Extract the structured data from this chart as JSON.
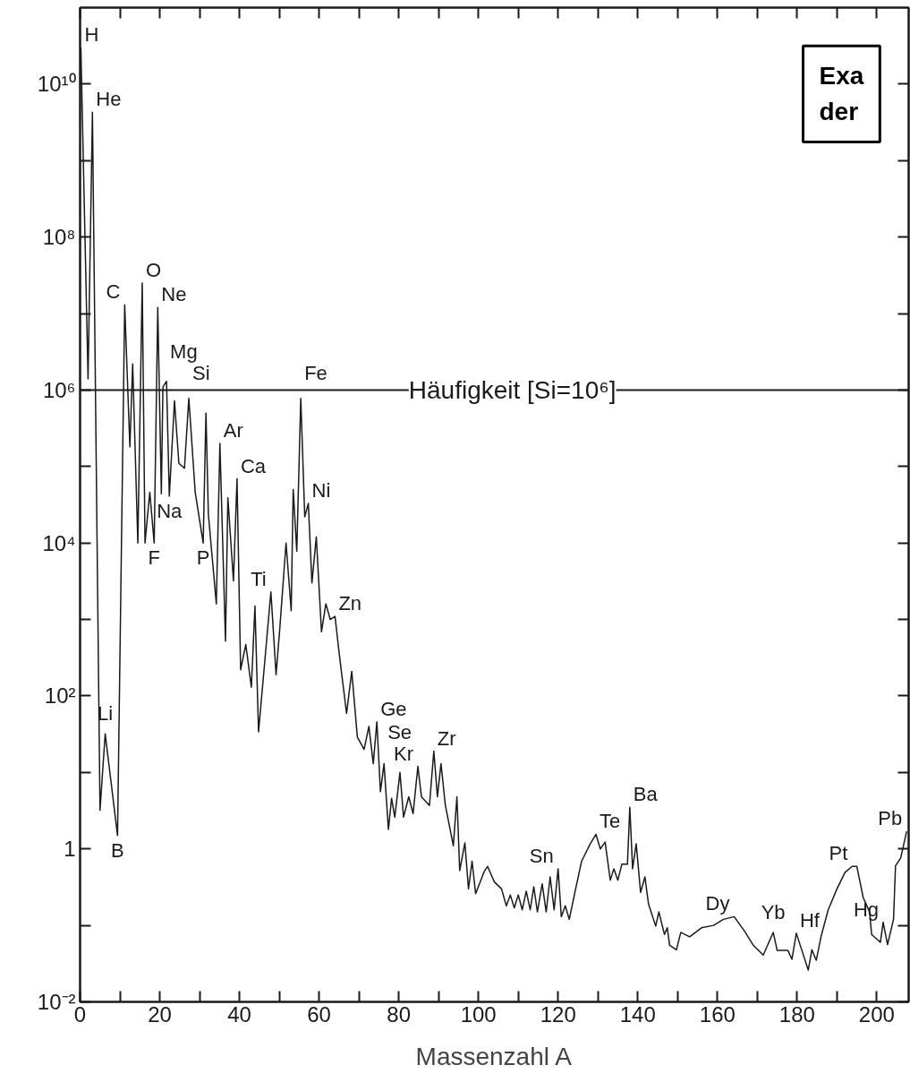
{
  "chart_data": {
    "type": "line",
    "xlabel": "Massenzahl A",
    "log": "y",
    "grid": false,
    "marker": "none",
    "line_style": "solid",
    "xlim": [
      0,
      208
    ],
    "ylim": [
      0.01,
      100000000000.0
    ],
    "xticks": [
      0,
      {
        "value": 10,
        "label": null
      },
      20,
      {
        "value": 30,
        "label": null
      },
      40,
      {
        "value": 50,
        "label": null
      },
      60,
      {
        "value": 70,
        "label": null
      },
      80,
      {
        "value": 90,
        "label": null
      },
      100,
      {
        "value": 110,
        "label": null
      },
      120,
      {
        "value": 130,
        "label": null
      },
      140,
      {
        "value": 150,
        "label": null
      },
      160,
      {
        "value": 170,
        "label": null
      },
      180,
      {
        "value": 190,
        "label": null
      },
      200
    ],
    "yticks": [
      {
        "value": 0.01,
        "label": "10⁻²"
      },
      {
        "value": 0.1,
        "label": null
      },
      1,
      {
        "value": 10,
        "label": null
      },
      {
        "value": 100,
        "label": "10²"
      },
      {
        "value": 1000,
        "label": null
      },
      {
        "value": 10000,
        "label": "10⁴"
      },
      {
        "value": 100000,
        "label": null
      },
      {
        "value": 1000000,
        "label": "10⁶"
      },
      {
        "value": 10000000,
        "label": null
      },
      {
        "value": 100000000,
        "label": "10⁸"
      },
      {
        "value": 1000000000,
        "label": null
      },
      {
        "value": 10000000000,
        "label": "10¹⁰"
      }
    ],
    "series": [
      {
        "color": "#1a1a1a",
        "x": [
          0.2,
          2.0,
          3.1,
          5.0,
          6.3,
          9.4,
          11.2,
          12.5,
          13.2,
          14.5,
          15.6,
          16.3,
          17.5,
          18.6,
          19.5,
          20.4,
          20.8,
          21.7,
          22.4,
          23.7,
          24.8,
          26.2,
          27.3,
          28.9,
          30.9,
          31.6,
          32.2,
          34.2,
          35.1,
          36.5,
          37.1,
          38.5,
          39.4,
          40.3,
          41.6,
          43.0,
          43.9,
          44.8,
          46.3,
          47.9,
          49.2,
          50.1,
          51.7,
          53.0,
          53.5,
          54.4,
          55.4,
          56.4,
          57.3,
          58.2,
          59.3,
          60.6,
          61.7,
          62.8,
          64.0,
          65.1,
          66.9,
          68.2,
          69.6,
          71.3,
          72.5,
          73.6,
          74.5,
          75.4,
          76.3,
          77.4,
          78.2,
          79.0,
          80.3,
          81.2,
          82.5,
          83.6,
          84.8,
          85.7,
          87.7,
          88.8,
          89.7,
          90.6,
          91.7,
          93.7,
          94.6,
          95.3,
          96.6,
          97.5,
          98.4,
          99.3,
          101.4,
          102.3,
          104.0,
          105.8,
          107.0,
          108.0,
          109.0,
          110.0,
          111.0,
          112.0,
          113.0,
          113.9,
          114.8,
          116.0,
          117.0,
          118.0,
          119.0,
          120.0,
          120.8,
          121.8,
          122.8,
          124.4,
          125.9,
          128.0,
          129.5,
          130.6,
          131.8,
          133.1,
          134.0,
          135.0,
          136.0,
          137.4,
          138.0,
          138.7,
          139.6,
          140.7,
          141.8,
          142.7,
          144.5,
          145.3,
          146.7,
          147.4,
          148.0,
          149.7,
          150.8,
          153.0,
          156.0,
          159.0,
          161.5,
          164.2,
          167.0,
          169.0,
          171.5,
          174.0,
          175.0,
          177.7,
          178.7,
          179.8,
          182.8,
          183.7,
          184.8,
          186.0,
          187.8,
          190.0,
          192.0,
          193.8,
          195.0,
          196.6,
          198.2,
          198.7,
          200.9,
          201.6,
          202.7,
          204.2,
          204.7,
          206.0,
          207.5
        ],
        "values": [
          30000000000.0,
          1400000.0,
          4300000000.0,
          3.2,
          32,
          1.5,
          13000000.0,
          180000.0,
          2200000.0,
          10000.0,
          25000000.0,
          10000.0,
          46000.0,
          10000.0,
          12000000.0,
          44000.0,
          1100000.0,
          1300000.0,
          41000.0,
          720000.0,
          110000.0,
          95000.0,
          780000.0,
          46000.0,
          10000.0,
          500000.0,
          24000.0,
          1600,
          200000.0,
          520,
          39000.0,
          3200,
          69000.0,
          220,
          470,
          130,
          1500,
          34,
          260,
          2300,
          190,
          720,
          10000.0,
          1300,
          50000.0,
          7800,
          780000.0,
          22000.0,
          33000.0,
          3000,
          12000.0,
          690,
          1600,
          1000,
          1100,
          340,
          59,
          210,
          29,
          20,
          40,
          13,
          46,
          5.6,
          13,
          1.8,
          4.6,
          2.6,
          10,
          2.6,
          4.8,
          2.9,
          12,
          4.8,
          3.7,
          19,
          4.8,
          13,
          3.7,
          1.1,
          4.8,
          0.52,
          1.2,
          0.3,
          0.69,
          0.26,
          0.5,
          0.59,
          0.37,
          0.3,
          0.18,
          0.25,
          0.17,
          0.25,
          0.16,
          0.28,
          0.16,
          0.32,
          0.15,
          0.35,
          0.15,
          0.43,
          0.16,
          0.55,
          0.13,
          0.18,
          0.12,
          0.3,
          0.69,
          1.15,
          1.55,
          1.0,
          1.23,
          0.39,
          0.55,
          0.39,
          0.63,
          0.63,
          3.5,
          0.55,
          1.17,
          0.27,
          0.43,
          0.19,
          0.098,
          0.15,
          0.076,
          0.093,
          0.055,
          0.048,
          0.081,
          0.071,
          0.093,
          0.1,
          0.12,
          0.13,
          0.081,
          0.055,
          0.041,
          0.081,
          0.047,
          0.047,
          0.036,
          0.079,
          0.026,
          0.048,
          0.035,
          0.071,
          0.16,
          0.3,
          0.49,
          0.59,
          0.59,
          0.23,
          0.15,
          0.076,
          0.06,
          0.11,
          0.056,
          0.12,
          0.6,
          0.76,
          1.7
        ]
      }
    ],
    "ref_lines": [
      {
        "axis": "y",
        "value": 1000000,
        "color": "#1a1a1a"
      }
    ],
    "annotations": [
      {
        "text": "Häufigkeit [Si=10⁶]",
        "x": 82.5,
        "y": 1000000
      },
      {
        "text": "H",
        "x": 0.2,
        "y": 30000000000.0
      },
      {
        "text": "He",
        "x": 3.1,
        "y": 4300000000.0
      },
      {
        "text": "C",
        "x": 11.2,
        "y": 13000000.0
      },
      {
        "text": "O",
        "x": 15.6,
        "y": 25000000.0
      },
      {
        "text": "Ne",
        "x": 19.5,
        "y": 12000000.0
      },
      {
        "text": "Mg",
        "x": 21.7,
        "y": 1300000.0
      },
      {
        "text": "Si",
        "x": 27.3,
        "y": 780000.0
      },
      {
        "text": "Fe",
        "x": 55.4,
        "y": 780000.0
      },
      {
        "text": "Ar",
        "x": 35.1,
        "y": 200000.0
      },
      {
        "text": "Ca",
        "x": 39.4,
        "y": 69000.0
      },
      {
        "text": "Ni",
        "x": 57.3,
        "y": 33000.0
      },
      {
        "text": "Na",
        "x": 22.4,
        "y": 41000.0
      },
      {
        "text": "F",
        "x": 18.6,
        "y": 10000.0
      },
      {
        "text": "P",
        "x": 30.9,
        "y": 10000.0
      },
      {
        "text": "Ti",
        "x": 47.9,
        "y": 2300
      },
      {
        "text": "Zn",
        "x": 64.0,
        "y": 1100
      },
      {
        "text": "Ge",
        "x": 74.5,
        "y": 46
      },
      {
        "text": "Kr",
        "x": 84.8,
        "y": 12
      },
      {
        "text": "Zr",
        "x": 88.8,
        "y": 19
      },
      {
        "text": "Se",
        "x": 76.3,
        "y": 13
      },
      {
        "text": "Li",
        "x": 6.3,
        "y": 32
      },
      {
        "text": "B",
        "x": 9.4,
        "y": 1.5
      },
      {
        "text": "Sn",
        "x": 120.0,
        "y": 0.55
      },
      {
        "text": "Te",
        "x": 129.5,
        "y": 1.55
      },
      {
        "text": "Ba",
        "x": 138.0,
        "y": 3.5
      },
      {
        "text": "Dy",
        "x": 164.2,
        "y": 0.13
      },
      {
        "text": "Yb",
        "x": 174.0,
        "y": 0.081
      },
      {
        "text": "Hf",
        "x": 179.8,
        "y": 0.079
      },
      {
        "text": "Pt",
        "x": 193.8,
        "y": 0.59
      },
      {
        "text": "Hg",
        "x": 201.6,
        "y": 0.11
      },
      {
        "text": "Pb",
        "x": 207.5,
        "y": 1.7
      },
      "Exa",
      "der"
    ]
  }
}
